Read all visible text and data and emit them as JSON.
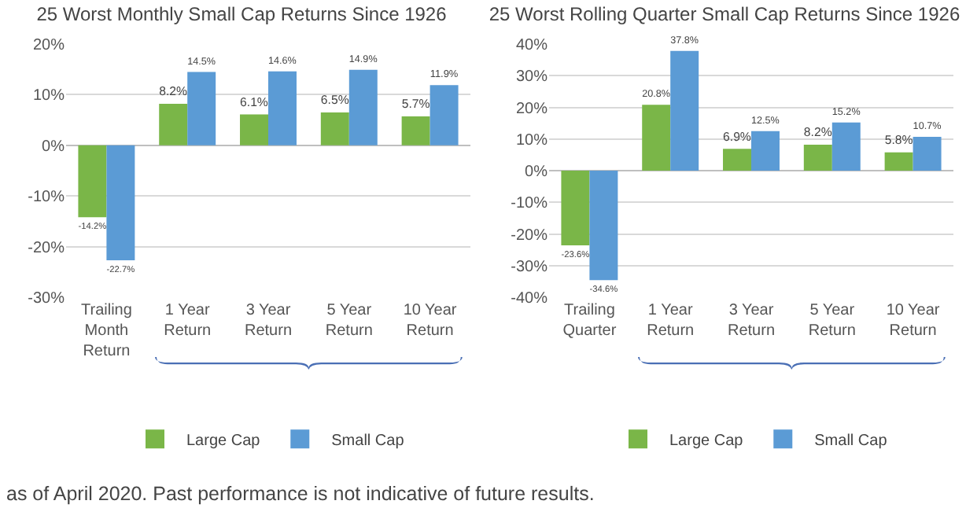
{
  "chart_data": [
    {
      "type": "bar",
      "title": "25 Worst Monthly Small Cap Returns Since 1926",
      "categories": [
        "Trailing\nMonth\nReturn",
        "1 Year\nReturn",
        "3 Year\nReturn",
        "5 Year\nReturn",
        "10 Year\nReturn"
      ],
      "series": [
        {
          "name": "Large Cap",
          "color": "#7ab648",
          "values": [
            -14.2,
            8.2,
            6.1,
            6.5,
            5.7
          ],
          "value_labels": [
            "-14.2%",
            "8.2%",
            "6.1%",
            "6.5%",
            "5.7%"
          ]
        },
        {
          "name": "Small Cap",
          "color": "#5b9bd5",
          "values": [
            -22.7,
            14.5,
            14.6,
            14.9,
            11.9
          ],
          "value_labels": [
            "-22.7%",
            "14.5%",
            "14.6%",
            "14.9%",
            "11.9%"
          ]
        }
      ],
      "ylim": [
        -30,
        20
      ],
      "yticks": [
        {
          "value": -30,
          "label": "-30%"
        },
        {
          "value": -20,
          "label": "-20%"
        },
        {
          "value": -10,
          "label": "-10%"
        },
        {
          "value": 0,
          "label": "0%"
        },
        {
          "value": 10,
          "label": "10%"
        },
        {
          "value": 20,
          "label": "20%"
        }
      ],
      "grid": "y",
      "legend": "bottom"
    },
    {
      "type": "bar",
      "title": "25 Worst Rolling Quarter Small Cap Returns Since 1926",
      "categories": [
        "Trailing\nQuarter",
        "1 Year\nReturn",
        "3 Year\nReturn",
        "5 Year\nReturn",
        "10 Year\nReturn"
      ],
      "series": [
        {
          "name": "Large Cap",
          "color": "#7ab648",
          "values": [
            -23.6,
            20.8,
            6.9,
            8.2,
            5.8
          ],
          "value_labels": [
            "-23.6%",
            "20.8%",
            "6.9%",
            "8.2%",
            "5.8%"
          ]
        },
        {
          "name": "Small Cap",
          "color": "#5b9bd5",
          "values": [
            -34.6,
            37.8,
            12.5,
            15.2,
            10.7
          ],
          "value_labels": [
            "-34.6%",
            "37.8%",
            "12.5%",
            "15.2%",
            "10.7%"
          ]
        }
      ],
      "ylim": [
        -40,
        40
      ],
      "yticks": [
        {
          "value": -40,
          "label": "-40%"
        },
        {
          "value": -30,
          "label": "-30%"
        },
        {
          "value": -20,
          "label": "-20%"
        },
        {
          "value": -10,
          "label": "-10%"
        },
        {
          "value": 0,
          "label": "0%"
        },
        {
          "value": 10,
          "label": "10%"
        },
        {
          "value": 20,
          "label": "20%"
        },
        {
          "value": 30,
          "label": "30%"
        },
        {
          "value": 40,
          "label": "40%"
        }
      ],
      "grid": "y",
      "legend": "bottom",
      "annotations": [
        "as of April 2020. Past performance is not indicative of future results."
      ]
    }
  ]
}
